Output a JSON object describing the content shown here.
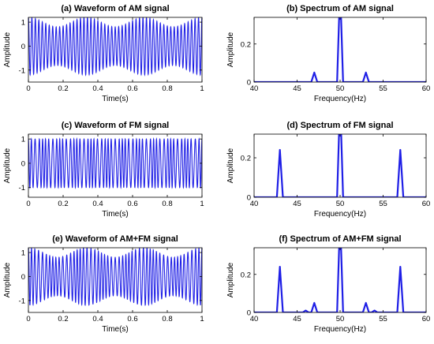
{
  "colors": {
    "signal": "#1f1fe6",
    "axes": "#000000",
    "background": "#ffffff"
  },
  "chart_data": [
    {
      "id": "a",
      "type": "line",
      "title": "(a) Waveform of AM signal",
      "xlabel": "Time(s)",
      "ylabel": "Amplitude",
      "xlim": [
        0,
        1
      ],
      "ylim": [
        -1.5,
        1.2
      ],
      "xticks": [
        "0",
        "0.2",
        "0.4",
        "0.6",
        "0.8",
        "1"
      ],
      "yticks": [
        "-1",
        "0",
        "1"
      ],
      "signal": {
        "carrier_hz": 50,
        "modulation": "AM",
        "mod_freq_hz": 3,
        "mod_depth": 0.2,
        "amplitude": 1.0
      }
    },
    {
      "id": "b",
      "type": "line",
      "title": "(b) Spectrum of AM signal",
      "xlabel": "Frequency(Hz)",
      "ylabel": "Amplitude",
      "xlim": [
        40,
        60
      ],
      "ylim": [
        0,
        0.34
      ],
      "xticks": [
        "40",
        "45",
        "50",
        "55",
        "60"
      ],
      "yticks": [
        "0",
        "0.2"
      ],
      "peaks": [
        {
          "x": 47,
          "y": 0.05
        },
        {
          "x": 50,
          "y": 0.5
        },
        {
          "x": 53,
          "y": 0.05
        }
      ]
    },
    {
      "id": "c",
      "type": "line",
      "title": "(c) Waveform of FM signal",
      "xlabel": "Time(s)",
      "ylabel": "Amplitude",
      "xlim": [
        0,
        1
      ],
      "ylim": [
        -1.4,
        1.2
      ],
      "xticks": [
        "0",
        "0.2",
        "0.4",
        "0.6",
        "0.8",
        "1"
      ],
      "yticks": [
        "-1",
        "0",
        "1"
      ],
      "signal": {
        "carrier_hz": 50,
        "modulation": "FM",
        "mod_freq_hz": 7,
        "amplitude": 1.0
      }
    },
    {
      "id": "d",
      "type": "line",
      "title": "(d) Spectrum of FM signal",
      "xlabel": "Frequency(Hz)",
      "ylabel": "Amplitude",
      "xlim": [
        40,
        60
      ],
      "ylim": [
        0,
        0.32
      ],
      "xticks": [
        "40",
        "45",
        "50",
        "55",
        "60"
      ],
      "yticks": [
        "0",
        "0.2"
      ],
      "peaks": [
        {
          "x": 43,
          "y": 0.24
        },
        {
          "x": 50,
          "y": 0.5
        },
        {
          "x": 57,
          "y": 0.24
        }
      ]
    },
    {
      "id": "e",
      "type": "line",
      "title": "(e) Waveform of AM+FM signal",
      "xlabel": "Time(s)",
      "ylabel": "Amplitude",
      "xlim": [
        0,
        1
      ],
      "ylim": [
        -1.5,
        1.2
      ],
      "xticks": [
        "0",
        "0.2",
        "0.4",
        "0.6",
        "0.8",
        "1"
      ],
      "yticks": [
        "-1",
        "0",
        "1"
      ],
      "signal": {
        "carrier_hz": 50,
        "modulation": "AM+FM",
        "mod_freq_hz": 3,
        "mod_depth": 0.2,
        "amplitude": 1.0
      }
    },
    {
      "id": "f",
      "type": "line",
      "title": "(f) Spectrum of AM+FM signal",
      "xlabel": "Frequency(Hz)",
      "ylabel": "Amplitude",
      "xlim": [
        40,
        60
      ],
      "ylim": [
        0,
        0.34
      ],
      "xticks": [
        "40",
        "45",
        "50",
        "55",
        "60"
      ],
      "yticks": [
        "0",
        "0.2"
      ],
      "peaks": [
        {
          "x": 43,
          "y": 0.24
        },
        {
          "x": 46,
          "y": 0.01
        },
        {
          "x": 47,
          "y": 0.05
        },
        {
          "x": 50,
          "y": 0.5
        },
        {
          "x": 53,
          "y": 0.05
        },
        {
          "x": 54,
          "y": 0.01
        },
        {
          "x": 57,
          "y": 0.24
        }
      ]
    }
  ]
}
